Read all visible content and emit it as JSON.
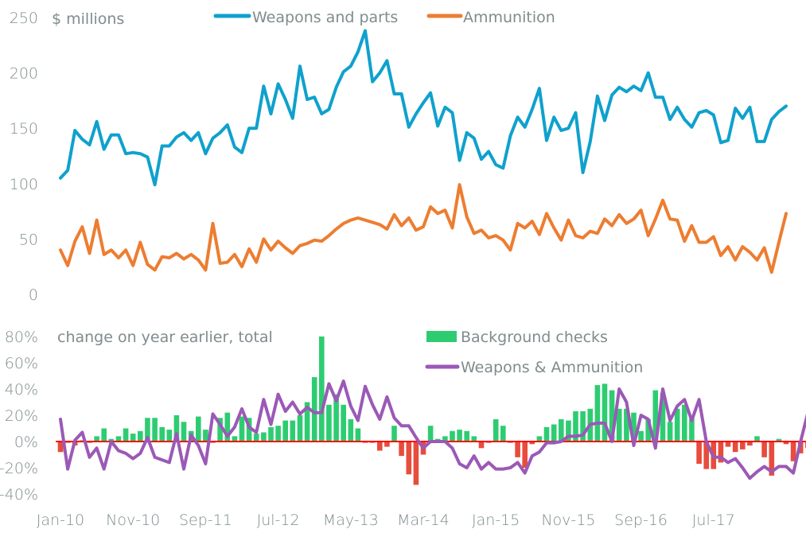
{
  "chart_data": [
    {
      "type": "line",
      "title": "",
      "ylabel": "$ millions",
      "ylim": [
        0,
        250
      ],
      "yticks": [
        "0",
        "50",
        "100",
        "150",
        "200",
        "250"
      ],
      "legend_position": "top",
      "start_month": "Jan-10",
      "series": [
        {
          "name": "Weapons and parts",
          "color": "#0fa1cd",
          "values": [
            105,
            112,
            148,
            140,
            135,
            156,
            131,
            144,
            144,
            127,
            128,
            127,
            124,
            99,
            134,
            134,
            142,
            146,
            139,
            146,
            127,
            141,
            146,
            153,
            133,
            128,
            150,
            150,
            188,
            163,
            190,
            176,
            159,
            206,
            176,
            178,
            163,
            167,
            187,
            201,
            206,
            219,
            238,
            192,
            200,
            211,
            181,
            181,
            151,
            163,
            173,
            182,
            152,
            169,
            164,
            121,
            146,
            141,
            122,
            129,
            117,
            114,
            143,
            160,
            151,
            167,
            186,
            139,
            160,
            148,
            150,
            164,
            110,
            138,
            179,
            157,
            180,
            187,
            183,
            188,
            184,
            200,
            178,
            178,
            158,
            169,
            158,
            151,
            164,
            166,
            162,
            137,
            139,
            168,
            159,
            169,
            138,
            138,
            158,
            165,
            170
          ]
        },
        {
          "name": "Ammunition",
          "color": "#ed7d31",
          "values": [
            40,
            26,
            48,
            61,
            37,
            67,
            36,
            40,
            33,
            40,
            26,
            47,
            27,
            22,
            34,
            33,
            37,
            32,
            36,
            31,
            22,
            64,
            28,
            29,
            36,
            25,
            41,
            29,
            50,
            40,
            48,
            42,
            37,
            44,
            46,
            49,
            48,
            53,
            59,
            64,
            67,
            69,
            67,
            65,
            63,
            59,
            72,
            62,
            69,
            58,
            61,
            79,
            73,
            76,
            60,
            99,
            70,
            55,
            58,
            51,
            53,
            49,
            40,
            64,
            60,
            66,
            54,
            73,
            60,
            49,
            67,
            53,
            51,
            57,
            55,
            68,
            62,
            72,
            64,
            68,
            76,
            53,
            68,
            85,
            68,
            67,
            48,
            62,
            47,
            47,
            52,
            35,
            43,
            31,
            43,
            38,
            31,
            42,
            20,
            47,
            73
          ]
        }
      ]
    },
    {
      "type": "bar",
      "title": "change on year earlier, total",
      "ylabel": "",
      "ylim": [
        -40,
        80
      ],
      "yticks": [
        "-40%",
        "-20%",
        "0%",
        "20%",
        "40%",
        "60%",
        "80%"
      ],
      "legend_position": "top-right",
      "positive_color": "#2ecc71",
      "negative_color": "#e74c3c",
      "zero_line_color": "#ff0000",
      "series": [
        {
          "name": "Background checks",
          "kind": "bar",
          "color": "#2ecc71",
          "values": [
            -8,
            -1,
            -3,
            1,
            -1,
            4,
            10,
            2,
            4,
            10,
            6,
            8,
            18,
            18,
            11,
            9,
            20,
            15,
            8,
            19,
            9,
            -1,
            18,
            22,
            4,
            19,
            18,
            6,
            7,
            11,
            12,
            16,
            16,
            20,
            30,
            49,
            80,
            28,
            36,
            28,
            17,
            10,
            -1,
            -1,
            -7,
            -4,
            12,
            -11,
            -25,
            -33,
            -10,
            12,
            2,
            4,
            8,
            9,
            8,
            4,
            -5,
            -1,
            17,
            12,
            -1,
            -12,
            -20,
            -2,
            4,
            11,
            13,
            17,
            16,
            23,
            23,
            25,
            43,
            44,
            39,
            25,
            25,
            22,
            8,
            17,
            39,
            37,
            15,
            25,
            28,
            18,
            -17,
            -21,
            -21,
            -16,
            -4,
            -8,
            -6,
            -3,
            4,
            -12,
            -26,
            2,
            -2,
            -15,
            -9,
            -5,
            -9,
            -1,
            5,
            14
          ]
        },
        {
          "name": "Weapons & Ammunition",
          "kind": "line",
          "color": "#9b59b6",
          "values": [
            17,
            -21,
            1,
            7,
            -12,
            -5,
            -21,
            0,
            -7,
            -9,
            -13,
            -9,
            3,
            -12,
            -14,
            -16,
            6,
            -21,
            5,
            -3,
            -17,
            21,
            13,
            4,
            11,
            25,
            11,
            7,
            32,
            13,
            36,
            23,
            30,
            21,
            26,
            22,
            22,
            44,
            31,
            46,
            27,
            16,
            42,
            28,
            17,
            34,
            18,
            12,
            12,
            3,
            -5,
            0,
            0,
            0,
            -5,
            -17,
            -20,
            -11,
            -21,
            -16,
            -21,
            -21,
            -20,
            -16,
            -24,
            -11,
            -8,
            -1,
            -1,
            0,
            4,
            4,
            5,
            13,
            14,
            14,
            0,
            40,
            30,
            -3,
            20,
            17,
            -5,
            40,
            16,
            27,
            32,
            16,
            32,
            0,
            -12,
            -12,
            -16,
            -13,
            -20,
            -28,
            -23,
            -19,
            -23,
            -19,
            -19,
            -24,
            0,
            22
          ]
        }
      ]
    }
  ],
  "xaxis": {
    "tick_labels": [
      "Jan-10",
      "Nov-10",
      "Sep-11",
      "Jul-12",
      "May-13",
      "Mar-14",
      "Jan-15",
      "Nov-15",
      "Sep-16",
      "Jul-17"
    ]
  },
  "top": {
    "unit_label": "$ millions",
    "legend": [
      "Weapons and parts",
      "Ammunition"
    ]
  },
  "bottom": {
    "subtitle": "change on year earlier, total",
    "legend": [
      "Background checks",
      "Weapons & Ammunition"
    ]
  }
}
